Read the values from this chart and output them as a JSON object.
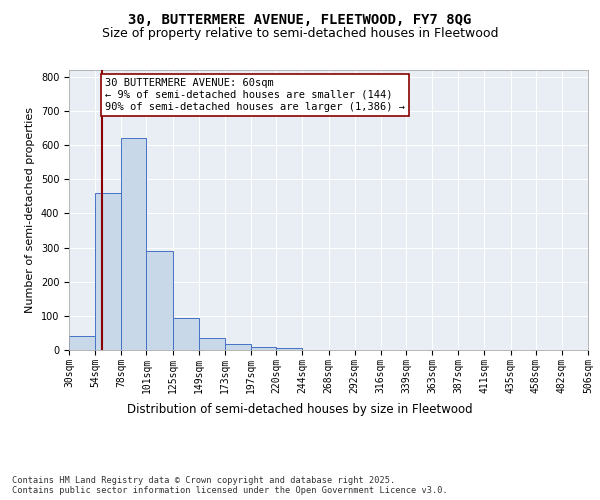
{
  "title1": "30, BUTTERMERE AVENUE, FLEETWOOD, FY7 8QG",
  "title2": "Size of property relative to semi-detached houses in Fleetwood",
  "xlabel": "Distribution of semi-detached houses by size in Fleetwood",
  "ylabel": "Number of semi-detached properties",
  "bin_edges": [
    30,
    54,
    78,
    101,
    125,
    149,
    173,
    197,
    220,
    244,
    268,
    292,
    316,
    339,
    363,
    387,
    411,
    435,
    458,
    482,
    506
  ],
  "bar_heights": [
    40,
    460,
    620,
    290,
    95,
    35,
    17,
    8,
    5,
    0,
    0,
    0,
    0,
    0,
    0,
    0,
    0,
    0,
    0,
    0
  ],
  "bar_facecolor": "#c8d8e8",
  "bar_edgecolor": "#4472c4",
  "property_size": 60,
  "vline_color": "#8b0000",
  "annotation_text": "30 BUTTERMERE AVENUE: 60sqm\n← 9% of semi-detached houses are smaller (144)\n90% of semi-detached houses are larger (1,386) →",
  "annotation_box_edgecolor": "#8b0000",
  "annotation_box_facecolor": "#ffffff",
  "ylim": [
    0,
    820
  ],
  "yticks": [
    0,
    100,
    200,
    300,
    400,
    500,
    600,
    700,
    800
  ],
  "background_color": "#e8eef4",
  "grid_color": "#ffffff",
  "footnote": "Contains HM Land Registry data © Crown copyright and database right 2025.\nContains public sector information licensed under the Open Government Licence v3.0.",
  "title1_fontsize": 10,
  "title2_fontsize": 9,
  "xlabel_fontsize": 8.5,
  "ylabel_fontsize": 8,
  "tick_fontsize": 7,
  "annotation_fontsize": 7.5
}
